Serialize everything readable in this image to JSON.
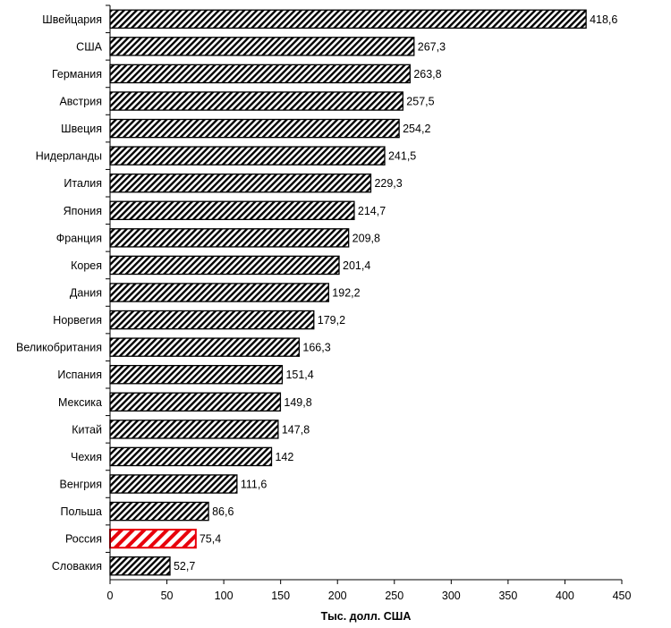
{
  "chart_data": {
    "type": "bar",
    "orientation": "horizontal",
    "categories": [
      "Швейцария",
      "США",
      "Германия",
      "Австрия",
      "Швеция",
      "Нидерланды",
      "Италия",
      "Япония",
      "Франция",
      "Корея",
      "Дания",
      "Норвегия",
      "Великобритания",
      "Испания",
      "Мексика",
      "Китай",
      "Чехия",
      "Венгрия",
      "Польша",
      "Россия",
      "Словакия"
    ],
    "values": [
      418.6,
      267.3,
      263.8,
      257.5,
      254.2,
      241.5,
      229.3,
      214.7,
      209.8,
      201.4,
      192.2,
      179.2,
      166.3,
      151.4,
      149.8,
      147.8,
      142,
      111.6,
      86.6,
      75.4,
      52.7
    ],
    "value_labels": [
      "418,6",
      "267,3",
      "263,8",
      "257,5",
      "254,2",
      "241,5",
      "229,3",
      "214,7",
      "209,8",
      "201,4",
      "192,2",
      "179,2",
      "166,3",
      "151,4",
      "149,8",
      "147,8",
      "142",
      "111,6",
      "86,6",
      "75,4",
      "52,7"
    ],
    "highlight": "Россия",
    "xlabel": "Тыс. долл. США",
    "ylabel": "",
    "xlim": [
      0,
      450
    ],
    "xticks": [
      0,
      50,
      100,
      150,
      200,
      250,
      300,
      350,
      400,
      450
    ],
    "grid": false,
    "legend": "none",
    "colors": {
      "bar_pattern": "#000000",
      "bar_background": "#ffffff",
      "highlight": "#e8000b",
      "axis": "#000000"
    }
  }
}
